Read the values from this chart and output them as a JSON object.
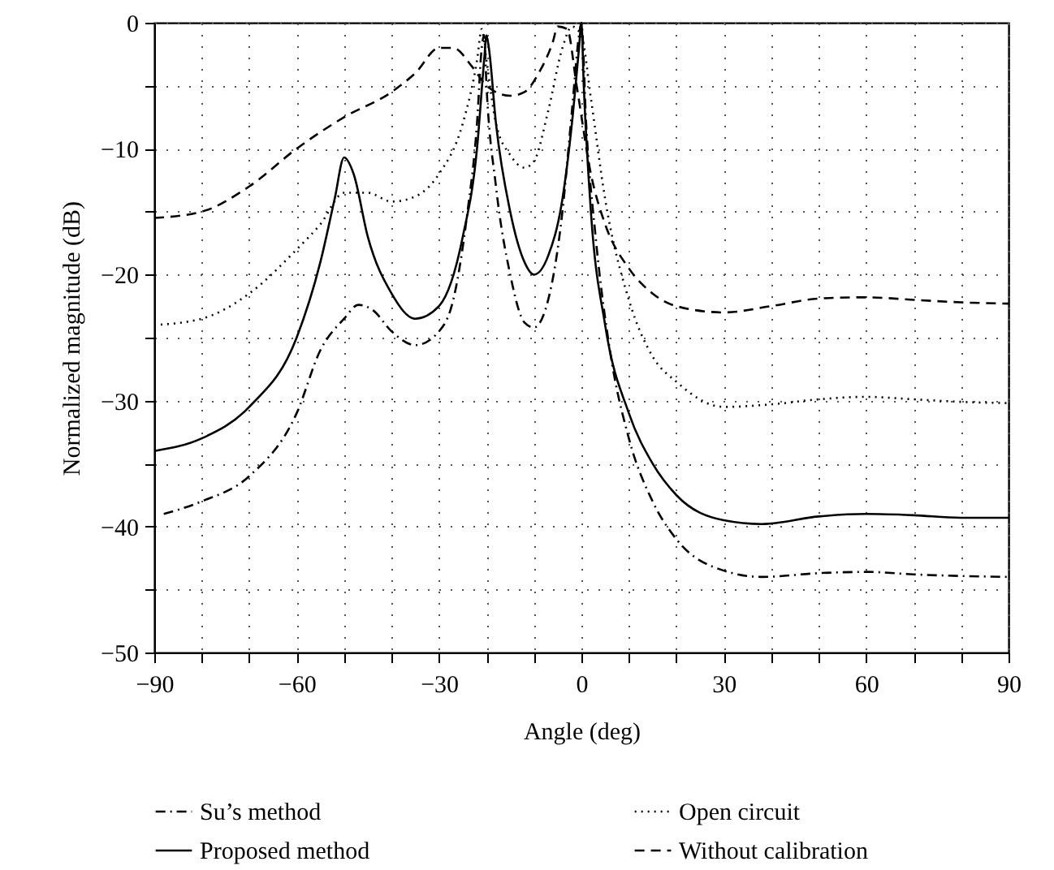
{
  "chart_data": {
    "type": "line",
    "xlabel": "Angle (deg)",
    "ylabel": "Normalized magnitude (dB)",
    "xlim": [
      -90,
      90
    ],
    "ylim": [
      -50,
      0
    ],
    "xticks": [
      {
        "value": -90,
        "label": "−90"
      },
      {
        "value": -80,
        "label": null
      },
      {
        "value": -70,
        "label": null
      },
      {
        "value": -60,
        "label": "−60"
      },
      {
        "value": -50,
        "label": null
      },
      {
        "value": -40,
        "label": null
      },
      {
        "value": -30,
        "label": "−30"
      },
      {
        "value": -20,
        "label": null
      },
      {
        "value": -10,
        "label": null
      },
      0,
      {
        "value": 10,
        "label": null
      },
      {
        "value": 20,
        "label": null
      },
      30,
      {
        "value": 40,
        "label": null
      },
      {
        "value": 50,
        "label": null
      },
      60,
      {
        "value": 70,
        "label": null
      },
      {
        "value": 80,
        "label": null
      },
      90
    ],
    "yticks": [
      {
        "value": -50,
        "label": "−50"
      },
      {
        "value": -45,
        "label": null
      },
      {
        "value": -40,
        "label": "−40"
      },
      {
        "value": -35,
        "label": null
      },
      {
        "value": -30,
        "label": "−30"
      },
      {
        "value": -25,
        "label": null
      },
      {
        "value": -20,
        "label": "−20"
      },
      {
        "value": -15,
        "label": null
      },
      {
        "value": -10,
        "label": "−10"
      },
      {
        "value": -5,
        "label": null
      },
      0
    ],
    "grid": true,
    "legend": "bottom",
    "marker": "none",
    "series": [
      {
        "name": "Su’s method",
        "color": "#000000",
        "line_style": "dashdot",
        "x": [
          -88,
          -80,
          -70,
          -60,
          -55,
          -50,
          -47,
          -44,
          -40,
          -35,
          -30,
          -27,
          -24,
          -22,
          -21,
          -20.5,
          -20,
          -18,
          -15,
          -12,
          -10,
          -7,
          -4,
          -2,
          -0.5,
          0,
          1,
          3,
          6,
          10,
          15,
          20,
          30,
          38,
          50,
          60,
          70,
          90
        ],
        "values": [
          -39,
          -38,
          -36,
          -31,
          -26,
          -23.5,
          -22.4,
          -22.8,
          -24.5,
          -25.6,
          -24.5,
          -22,
          -15,
          -8,
          -2,
          -1,
          -5,
          -13,
          -20,
          -23.8,
          -24.2,
          -22,
          -15,
          -7,
          -1,
          0,
          -8,
          -17,
          -26,
          -33,
          -38,
          -41,
          -43.5,
          -44,
          -43.7,
          -43.6,
          -43.8,
          -44
        ]
      },
      {
        "name": "Open circuit",
        "color": "#000000",
        "line_style": "dotted",
        "x": [
          -90,
          -80,
          -70,
          -60,
          -55,
          -50,
          -45,
          -40,
          -35,
          -30,
          -25,
          -22,
          -21,
          -20,
          -18,
          -15,
          -12,
          -10,
          -7,
          -4,
          -2,
          0,
          2,
          5,
          10,
          15,
          20,
          30,
          40,
          50,
          60,
          70,
          80,
          90
        ],
        "values": [
          -24,
          -23.5,
          -21.5,
          -18,
          -16,
          -13.5,
          -13.5,
          -14.2,
          -13.8,
          -12,
          -8,
          -3,
          -0.5,
          -3,
          -8,
          -10.5,
          -11.5,
          -11,
          -7,
          -2,
          -0.3,
          -1,
          -6,
          -14,
          -22,
          -26.5,
          -28.5,
          -30.5,
          -30.3,
          -29.9,
          -29.7,
          -29.9,
          -30.1,
          -30.2
        ]
      },
      {
        "name": "Proposed method",
        "color": "#000000",
        "line_style": "solid",
        "x": [
          -90,
          -80,
          -70,
          -60,
          -55,
          -52,
          -50,
          -48,
          -45,
          -40,
          -35,
          -30,
          -25,
          -22,
          -20.5,
          -20,
          -19.5,
          -18,
          -15,
          -12,
          -10,
          -7,
          -4,
          -2,
          -0.5,
          0,
          0.5,
          2,
          5,
          10,
          15,
          20,
          30,
          38,
          50,
          60,
          70,
          80,
          90
        ],
        "values": [
          -34,
          -33,
          -30.5,
          -25,
          -19,
          -14,
          -10.7,
          -12,
          -17,
          -21.5,
          -23.5,
          -22.5,
          -17,
          -10,
          -3,
          -1,
          -2,
          -8,
          -15,
          -19,
          -20,
          -18.5,
          -14,
          -8,
          -2,
          0,
          -5,
          -15,
          -24,
          -31,
          -35,
          -37.5,
          -39.5,
          -39.8,
          -39.2,
          -39,
          -39.1,
          -39.3,
          -39.3
        ]
      },
      {
        "name": "Without calibration",
        "color": "#000000",
        "line_style": "dashed",
        "x": [
          -90,
          -80,
          -70,
          -60,
          -50,
          -40,
          -35,
          -30,
          -27,
          -23,
          -20,
          -15,
          -12,
          -9,
          -6,
          -5,
          -3,
          -1,
          2,
          5,
          10,
          15,
          20,
          30,
          40,
          50,
          60,
          70,
          80,
          90
        ],
        "values": [
          -15.5,
          -15,
          -13,
          -10,
          -7.5,
          -5.5,
          -4,
          -2,
          -2,
          -3.5,
          -5,
          -5.8,
          -5.5,
          -4,
          -1.5,
          -0.3,
          -0.5,
          -5,
          -12,
          -16,
          -19.5,
          -21.5,
          -22.5,
          -23,
          -22.5,
          -21.9,
          -21.8,
          -22,
          -22.2,
          -22.3
        ]
      }
    ]
  }
}
